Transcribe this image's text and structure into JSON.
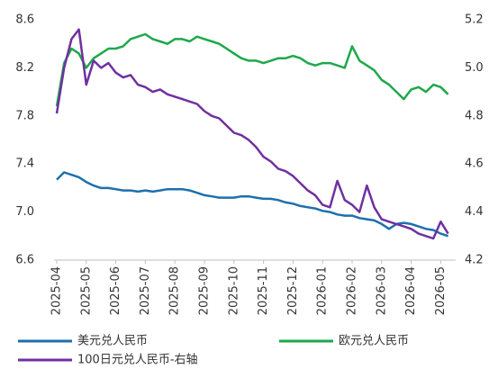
{
  "chart_data": {
    "type": "line",
    "categories": [
      "2025-04",
      null,
      null,
      null,
      "2025-05",
      null,
      null,
      null,
      "2025-06",
      null,
      null,
      null,
      "2025-07",
      null,
      null,
      null,
      "2025-08",
      null,
      null,
      null,
      "2025-09",
      null,
      null,
      null,
      "2025-10",
      null,
      null,
      null,
      "2025-11",
      null,
      null,
      null,
      "2025-12",
      null,
      null,
      null,
      "2026-01",
      null,
      null,
      null,
      "2026-02",
      null,
      null,
      null,
      "2026-03",
      null,
      null,
      null,
      "2026-04",
      null,
      null,
      null,
      "2026-05",
      null
    ],
    "ylim": [
      6.6,
      8.6
    ],
    "yticks": [
      6.6,
      {
        "value": 7,
        "label": "7.0"
      },
      7.4,
      7.8,
      8.2,
      8.6
    ],
    "y2lim": [
      4.2,
      5.2
    ],
    "y2ticks": [
      4.2,
      4.4,
      4.6,
      4.8,
      {
        "value": 5,
        "label": "5.0"
      },
      5.2
    ],
    "series": [
      {
        "name": "美元兑人民币",
        "color": "#1f6fad",
        "axis": "y",
        "values": [
          7.27,
          7.33,
          7.31,
          7.29,
          7.25,
          7.22,
          7.2,
          7.2,
          7.19,
          7.18,
          7.18,
          7.17,
          7.18,
          7.17,
          7.18,
          7.19,
          7.19,
          7.19,
          7.18,
          7.16,
          7.14,
          7.13,
          7.12,
          7.12,
          7.12,
          7.13,
          7.13,
          7.12,
          7.11,
          7.11,
          7.1,
          7.08,
          7.07,
          7.05,
          7.04,
          7.03,
          7.01,
          7.0,
          6.98,
          6.97,
          6.97,
          6.95,
          6.94,
          6.93,
          6.9,
          6.86,
          6.9,
          6.91,
          6.9,
          6.88,
          6.86,
          6.85,
          6.82,
          6.8
        ]
      },
      {
        "name": "欧元兑人民币",
        "color": "#1ea84a",
        "axis": "y2",
        "values": [
          4.84,
          5.02,
          5.08,
          5.06,
          5.0,
          5.04,
          5.06,
          5.08,
          5.08,
          5.09,
          5.12,
          5.13,
          5.14,
          5.12,
          5.11,
          5.1,
          5.12,
          5.12,
          5.11,
          5.13,
          5.12,
          5.11,
          5.1,
          5.08,
          5.06,
          5.04,
          5.03,
          5.03,
          5.02,
          5.03,
          5.04,
          5.04,
          5.05,
          5.04,
          5.02,
          5.01,
          5.02,
          5.02,
          5.01,
          5.0,
          5.09,
          5.03,
          5.01,
          4.99,
          4.95,
          4.93,
          4.9,
          4.87,
          4.91,
          4.92,
          4.9,
          4.93,
          4.92,
          4.89
        ]
      },
      {
        "name": "100日元兑人民币-右轴",
        "color": "#7030a0",
        "axis": "y2",
        "values": [
          4.81,
          5.0,
          5.12,
          5.16,
          4.93,
          5.03,
          5.0,
          5.02,
          4.98,
          4.96,
          4.97,
          4.93,
          4.92,
          4.9,
          4.91,
          4.89,
          4.88,
          4.87,
          4.86,
          4.85,
          4.82,
          4.8,
          4.79,
          4.76,
          4.73,
          4.72,
          4.7,
          4.67,
          4.63,
          4.61,
          4.58,
          4.57,
          4.55,
          4.52,
          4.49,
          4.47,
          4.43,
          4.42,
          4.53,
          4.45,
          4.43,
          4.4,
          4.51,
          4.42,
          4.37,
          4.36,
          4.35,
          4.34,
          4.33,
          4.31,
          4.3,
          4.29,
          4.36,
          4.31
        ]
      }
    ]
  }
}
